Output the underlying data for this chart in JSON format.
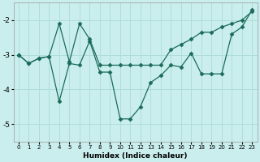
{
  "xlabel": "Humidex (Indice chaleur)",
  "bg_color": "#caeeed",
  "grid_color": "#b0ddd9",
  "line_color": "#1a6b5a",
  "xlim": [
    -0.5,
    23.5
  ],
  "ylim": [
    -5.5,
    -1.5
  ],
  "xticks": [
    0,
    1,
    2,
    3,
    4,
    5,
    6,
    7,
    8,
    9,
    10,
    11,
    12,
    13,
    14,
    15,
    16,
    17,
    18,
    19,
    20,
    21,
    22,
    23
  ],
  "yticks": [
    -5,
    -4,
    -3,
    -2
  ],
  "series_jagged_x": [
    0,
    1,
    2,
    3,
    4,
    5,
    6,
    7,
    8,
    9,
    10,
    11,
    12,
    13,
    14,
    15,
    16,
    17,
    18,
    19,
    20,
    21,
    22,
    23
  ],
  "series_jagged_y": [
    -3.0,
    -3.25,
    -3.1,
    -3.05,
    -4.35,
    -3.25,
    -3.3,
    -2.6,
    -3.5,
    -3.5,
    -4.85,
    -4.85,
    -4.5,
    -3.8,
    -3.6,
    -3.3,
    -3.35,
    -2.95,
    -3.55,
    -3.55,
    -3.55,
    -2.4,
    -2.2,
    -1.7
  ],
  "series_trend_x": [
    0,
    1,
    2,
    3,
    4,
    5,
    6,
    7,
    8,
    9,
    10,
    11,
    12,
    13,
    14,
    15,
    16,
    17,
    18,
    19,
    20,
    21,
    22,
    23
  ],
  "series_trend_y": [
    -3.0,
    -3.25,
    -3.1,
    -3.05,
    -2.1,
    -3.2,
    -2.1,
    -2.55,
    -3.3,
    -3.3,
    -3.3,
    -3.3,
    -3.3,
    -3.3,
    -3.3,
    -2.85,
    -2.7,
    -2.55,
    -2.35,
    -2.35,
    -2.2,
    -2.1,
    -2.0,
    -1.75
  ]
}
